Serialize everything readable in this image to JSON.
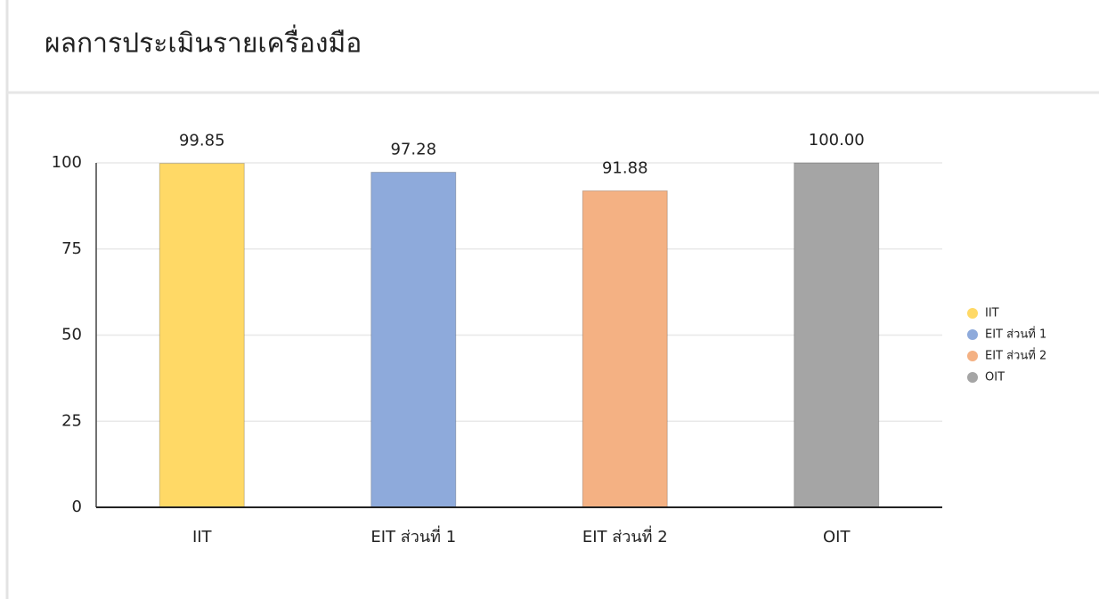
{
  "chart_data": {
    "type": "bar",
    "title": "ผลการประเมินรายเครื่องมือ",
    "categories": [
      "IIT",
      "EIT ส่วนที่ 1",
      "EIT ส่วนที่ 2",
      "OIT"
    ],
    "values": [
      99.85,
      97.28,
      91.88,
      100
    ],
    "value_labels": [
      "99.85",
      "97.28",
      "91.88",
      "100.00"
    ],
    "colors": [
      "#ffd966",
      "#8eaadb",
      "#f4b183",
      "#a5a5a5"
    ],
    "ylim": [
      0,
      100
    ],
    "yticks": [
      0,
      25,
      50,
      75,
      100
    ],
    "grid": true,
    "legend": "right"
  }
}
